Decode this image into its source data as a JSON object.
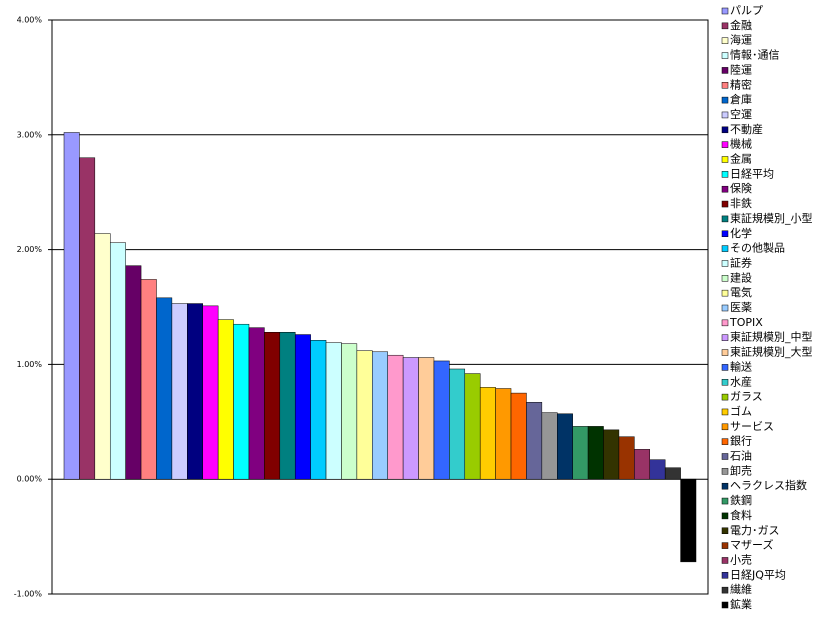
{
  "chart_data": {
    "type": "bar",
    "categories": [
      "パルプ",
      "金融",
      "海運",
      "情報･通信",
      "陸運",
      "精密",
      "倉庫",
      "空運",
      "不動産",
      "機械",
      "金属",
      "日経平均",
      "保険",
      "非鉄",
      "東証規模別_小型",
      "化学",
      "その他製品",
      "証券",
      "建設",
      "電気",
      "医薬",
      "TOPIX",
      "東証規模別_中型",
      "東証規模別_大型",
      "輸送",
      "水産",
      "ガラス",
      "ゴム",
      "サービス",
      "銀行",
      "石油",
      "卸売",
      "ヘラクレス指数",
      "鉄鋼",
      "食料",
      "電力･ガス",
      "マザーズ",
      "小売",
      "日経JQ平均",
      "繊維",
      "鉱業"
    ],
    "values": [
      3.02,
      2.8,
      2.14,
      2.06,
      1.86,
      1.74,
      1.58,
      1.53,
      1.53,
      1.51,
      1.39,
      1.35,
      1.32,
      1.28,
      1.28,
      1.26,
      1.21,
      1.19,
      1.18,
      1.12,
      1.11,
      1.08,
      1.06,
      1.06,
      1.03,
      0.96,
      0.92,
      0.8,
      0.79,
      0.75,
      0.67,
      0.58,
      0.57,
      0.46,
      0.46,
      0.43,
      0.37,
      0.26,
      0.17,
      0.1,
      -0.72
    ],
    "colors": [
      "#9999FF",
      "#993366",
      "#FFFFCC",
      "#CCFFFF",
      "#660066",
      "#FF8080",
      "#0066CC",
      "#CCCCFF",
      "#000080",
      "#FF00FF",
      "#FFFF00",
      "#00FFFF",
      "#800080",
      "#800000",
      "#008080",
      "#0000FF",
      "#00CCFF",
      "#CCFFFF",
      "#CCFFCC",
      "#FFFF99",
      "#99CCFF",
      "#FF99CC",
      "#CC99FF",
      "#FFCC99",
      "#3366FF",
      "#33CCCC",
      "#99CC00",
      "#FFCC00",
      "#FF9900",
      "#FF6600",
      "#666699",
      "#969696",
      "#003366",
      "#339966",
      "#003300",
      "#333300",
      "#993300",
      "#993366",
      "#333399",
      "#333333",
      "#000000"
    ],
    "ylim": [
      -1,
      4
    ],
    "yticks": [
      {
        "value": -1,
        "label": "-1.00%"
      },
      {
        "value": 0,
        "label": "0.00%"
      },
      {
        "value": 1,
        "label": "1.00%"
      },
      {
        "value": 2,
        "label": "2.00%"
      },
      {
        "value": 3,
        "label": "3.00%"
      },
      {
        "value": 4,
        "label": "4.00%"
      }
    ],
    "grid": true,
    "legend": "right"
  }
}
